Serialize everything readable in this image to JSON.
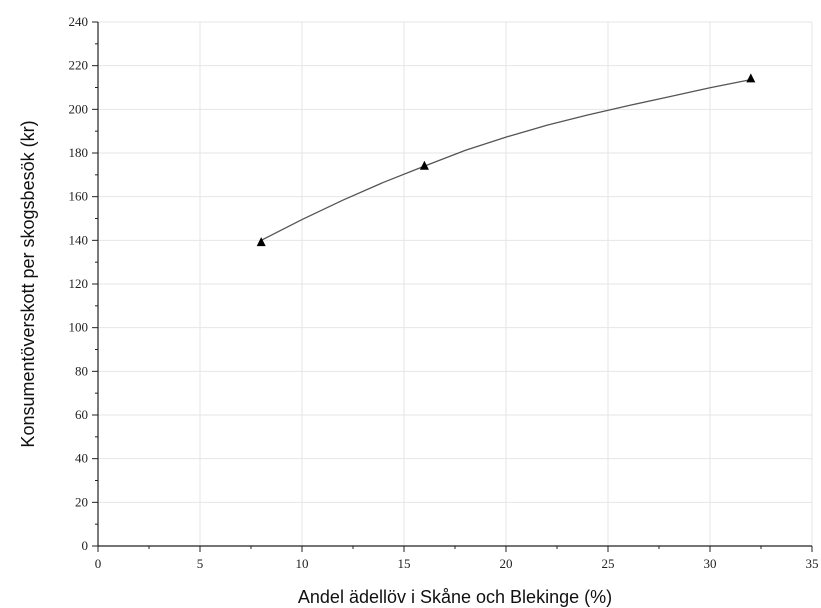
{
  "chart_data": {
    "type": "scatter",
    "title": "",
    "xlabel": "Andel ädellöv i Skåne och Blekinge (%)",
    "ylabel": "Konsumentöverskott per skogsbesök (kr)",
    "xlim": [
      0,
      35
    ],
    "ylim": [
      0,
      240
    ],
    "x_ticks": [
      0,
      5,
      10,
      15,
      20,
      25,
      30,
      35
    ],
    "y_ticks": [
      0,
      20,
      40,
      60,
      80,
      100,
      120,
      140,
      160,
      180,
      200,
      220,
      240
    ],
    "grid": true,
    "series": [
      {
        "marker": "triangle",
        "x": [
          8,
          16,
          32
        ],
        "y": [
          139,
          174,
          214
        ]
      }
    ],
    "fitted_curve": {
      "x": [
        8,
        10,
        12,
        14,
        16,
        18,
        20,
        22,
        24,
        26,
        28,
        30,
        32
      ],
      "y": [
        140,
        149.5,
        158.4,
        166.6,
        174,
        181.2,
        187.3,
        192.7,
        197.4,
        201.7,
        205.8,
        209.9,
        213.6
      ]
    }
  }
}
